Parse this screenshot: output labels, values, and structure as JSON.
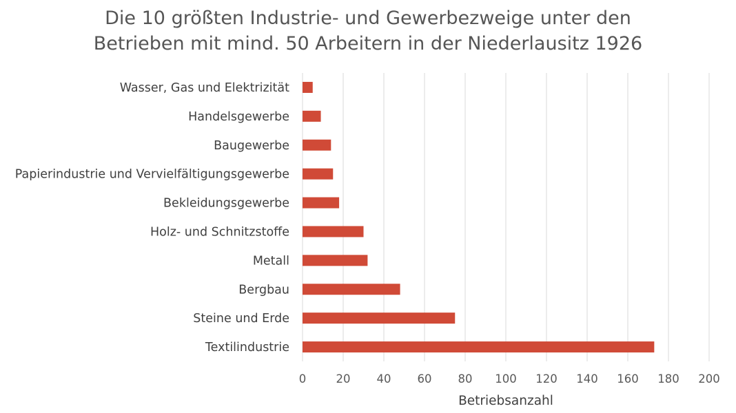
{
  "chart_data": {
    "type": "bar",
    "orientation": "horizontal",
    "title_lines": [
      "Die 10 größten Industrie- und Gewerbezweige unter den",
      "Betrieben mit mind. 50 Arbeitern in der Niederlausitz 1926"
    ],
    "xlabel": "Betriebsanzahl",
    "ylabel": "",
    "categories": [
      "Wasser, Gas und Elektrizität",
      "Handelsgewerbe",
      "Baugewerbe",
      "Papierindustrie und Vervielfältigungsgewerbe",
      "Bekleidungsgewerbe",
      "Holz- und Schnitzstoffe",
      "Metall",
      "Bergbau",
      "Steine und Erde",
      "Textilindustrie"
    ],
    "values": [
      5,
      9,
      14,
      15,
      18,
      30,
      32,
      48,
      75,
      173
    ],
    "xlim": [
      0,
      200
    ],
    "xticks": [
      "0",
      "20",
      "40",
      "60",
      "80",
      "100",
      "120",
      "140",
      "160",
      "180",
      "200"
    ],
    "grid": "vertical",
    "legend": "none",
    "bar_color": "#D04A37",
    "grid_color": "#D9D9D9"
  }
}
